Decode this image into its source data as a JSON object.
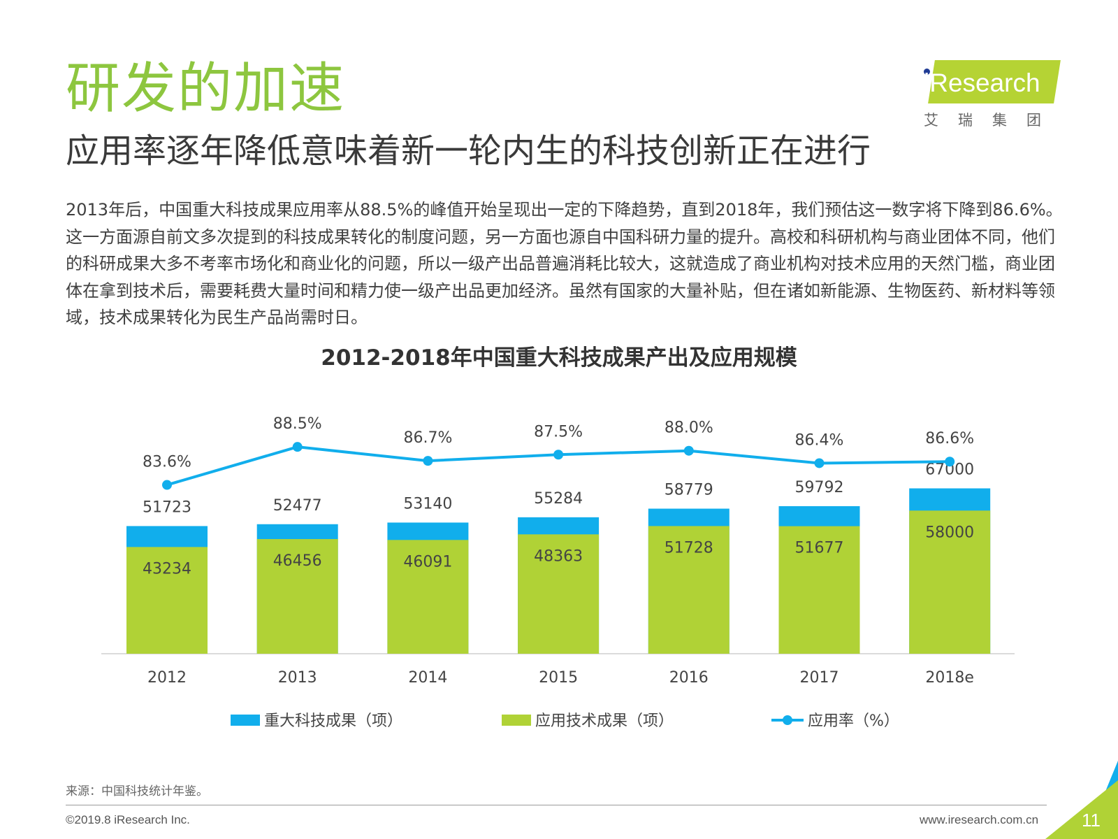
{
  "header": {
    "title": "研发的加速",
    "subtitle": "应用率逐年降低意味着新一轮内生的科技创新正在进行",
    "logo_text": "iResearch",
    "logo_cn": "艾瑞集团"
  },
  "body": {
    "paragraph": "2013年后，中国重大科技成果应用率从88.5%的峰值开始呈现出一定的下降趋势，直到2018年，我们预估这一数字将下降到86.6%。这一方面源自前文多次提到的科技成果转化的制度问题，另一方面也源自中国科研力量的提升。高校和科研机构与商业团体不同，他们的科研成果大多不考率市场化和商业化的问题，所以一级产出品普遍消耗比较大，这就造成了商业机构对技术应用的天然门槛，商业团体在拿到技术后，需要耗费大量时间和精力使一级产出品更加经济。虽然有国家的大量补贴，但在诸如新能源、生物医药、新材料等领域，技术成果转化为民生产品尚需时日。"
  },
  "chart_data": {
    "type": "bar",
    "title": "2012-2018年中国重大科技成果产出及应用规模",
    "categories": [
      "2012",
      "2013",
      "2014",
      "2015",
      "2016",
      "2017",
      "2018e"
    ],
    "series": [
      {
        "name": "重大科技成果（项）",
        "kind": "bar-total",
        "color": "#11aeec",
        "values": [
          51723,
          52477,
          53140,
          55284,
          58779,
          59792,
          67000
        ]
      },
      {
        "name": "应用技术成果（项）",
        "kind": "bar",
        "color": "#b0d236",
        "values": [
          43234,
          46456,
          46091,
          48363,
          51728,
          51677,
          58000
        ]
      },
      {
        "name": "应用率（%）",
        "kind": "line",
        "color": "#11aeec",
        "values": [
          83.6,
          88.5,
          86.7,
          87.5,
          88.0,
          86.4,
          86.6
        ],
        "labels": [
          "83.6%",
          "88.5%",
          "86.7%",
          "87.5%",
          "88.0%",
          "86.4%",
          "86.6%"
        ]
      }
    ],
    "legend_position": "bottom",
    "grid": false
  },
  "footer": {
    "source": "来源：中国科技统计年鉴。",
    "copyright": "©2019.8 iResearch Inc.",
    "website": "www.iresearch.com.cn",
    "page_number": "11"
  }
}
